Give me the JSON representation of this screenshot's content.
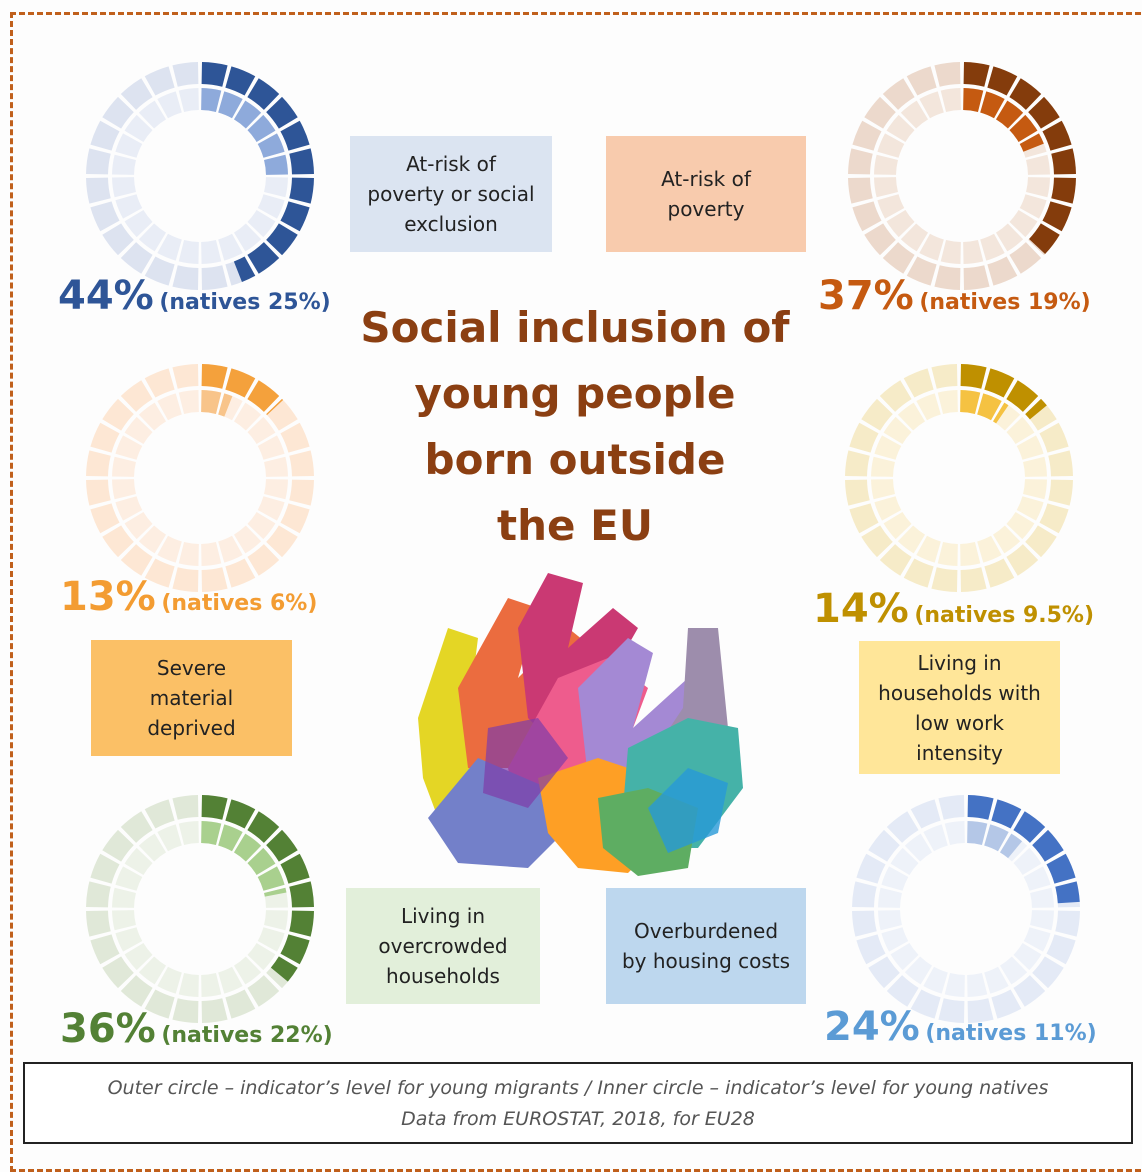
{
  "title_lines": [
    "Social inclusion of",
    "young people",
    "born outside",
    "the EU"
  ],
  "footer": {
    "line1": "Outer circle – indicator’s level for young migrants / Inner circle – indicator’s level for young natives",
    "line2": "Data from EUROSTAT, 2018,  for EU28"
  },
  "colors": {
    "frame": "#c0601c",
    "title": "#8b3f12"
  },
  "icons": {
    "center_image": "colorful-hands-icon"
  },
  "chart_data": [
    {
      "type": "pie",
      "label": "At-risk of poverty or social exclusion",
      "display_main": "44%",
      "display_natives": "(natives 25%)",
      "migrants": 44,
      "natives": 25,
      "colors": {
        "outer_on": "#2e5597",
        "outer_off": "#dde3f0",
        "inner_on": "#8eaadb",
        "inner_off": "#e9edf6",
        "text": "#2e5597",
        "box": "#dbe4f1"
      }
    },
    {
      "type": "pie",
      "label": "At-risk of poverty",
      "display_main": "37%",
      "display_natives": "(natives 19%)",
      "migrants": 37,
      "natives": 19,
      "colors": {
        "outer_on": "#843c0c",
        "outer_off": "#ecd9cc",
        "inner_on": "#c55a11",
        "inner_off": "#f3e6dc",
        "text": "#c55a11",
        "box": "#f8cbad"
      }
    },
    {
      "type": "pie",
      "label": "Severe material deprived",
      "display_main": "13%",
      "display_natives": "(natives 6%)",
      "migrants": 13,
      "natives": 6,
      "colors": {
        "outer_on": "#f4a13c",
        "outer_off": "#fde7d4",
        "inner_on": "#f8c48a",
        "inner_off": "#fdeee2",
        "text": "#f39c32",
        "box": "#fbc066"
      }
    },
    {
      "type": "pie",
      "label": "Living in households with low work intensity",
      "display_main": "14%",
      "display_natives": "(natives 9.5%)",
      "migrants": 14,
      "natives": 9.5,
      "colors": {
        "outer_on": "#bf9000",
        "outer_off": "#f6ebc8",
        "inner_on": "#f5c242",
        "inner_off": "#fbf2da",
        "text": "#bf9000",
        "box": "#ffe699"
      }
    },
    {
      "type": "pie",
      "label": "Living in overcrowded households",
      "display_main": "36%",
      "display_natives": "(natives 22%)",
      "migrants": 36,
      "natives": 22,
      "colors": {
        "outer_on": "#538135",
        "outer_off": "#e0e8d8",
        "inner_on": "#a9d08e",
        "inner_off": "#edf2e8",
        "text": "#538135",
        "box": "#e2efda"
      }
    },
    {
      "type": "pie",
      "label": "Overburdened by housing costs",
      "display_main": "24%",
      "display_natives": "(natives 11%)",
      "migrants": 24,
      "natives": 11,
      "colors": {
        "outer_on": "#4472c4",
        "outer_off": "#e4eaf6",
        "inner_on": "#b4c7e7",
        "inner_off": "#eef2f9",
        "text": "#5b9bd5",
        "box": "#bdd7ee"
      }
    }
  ]
}
